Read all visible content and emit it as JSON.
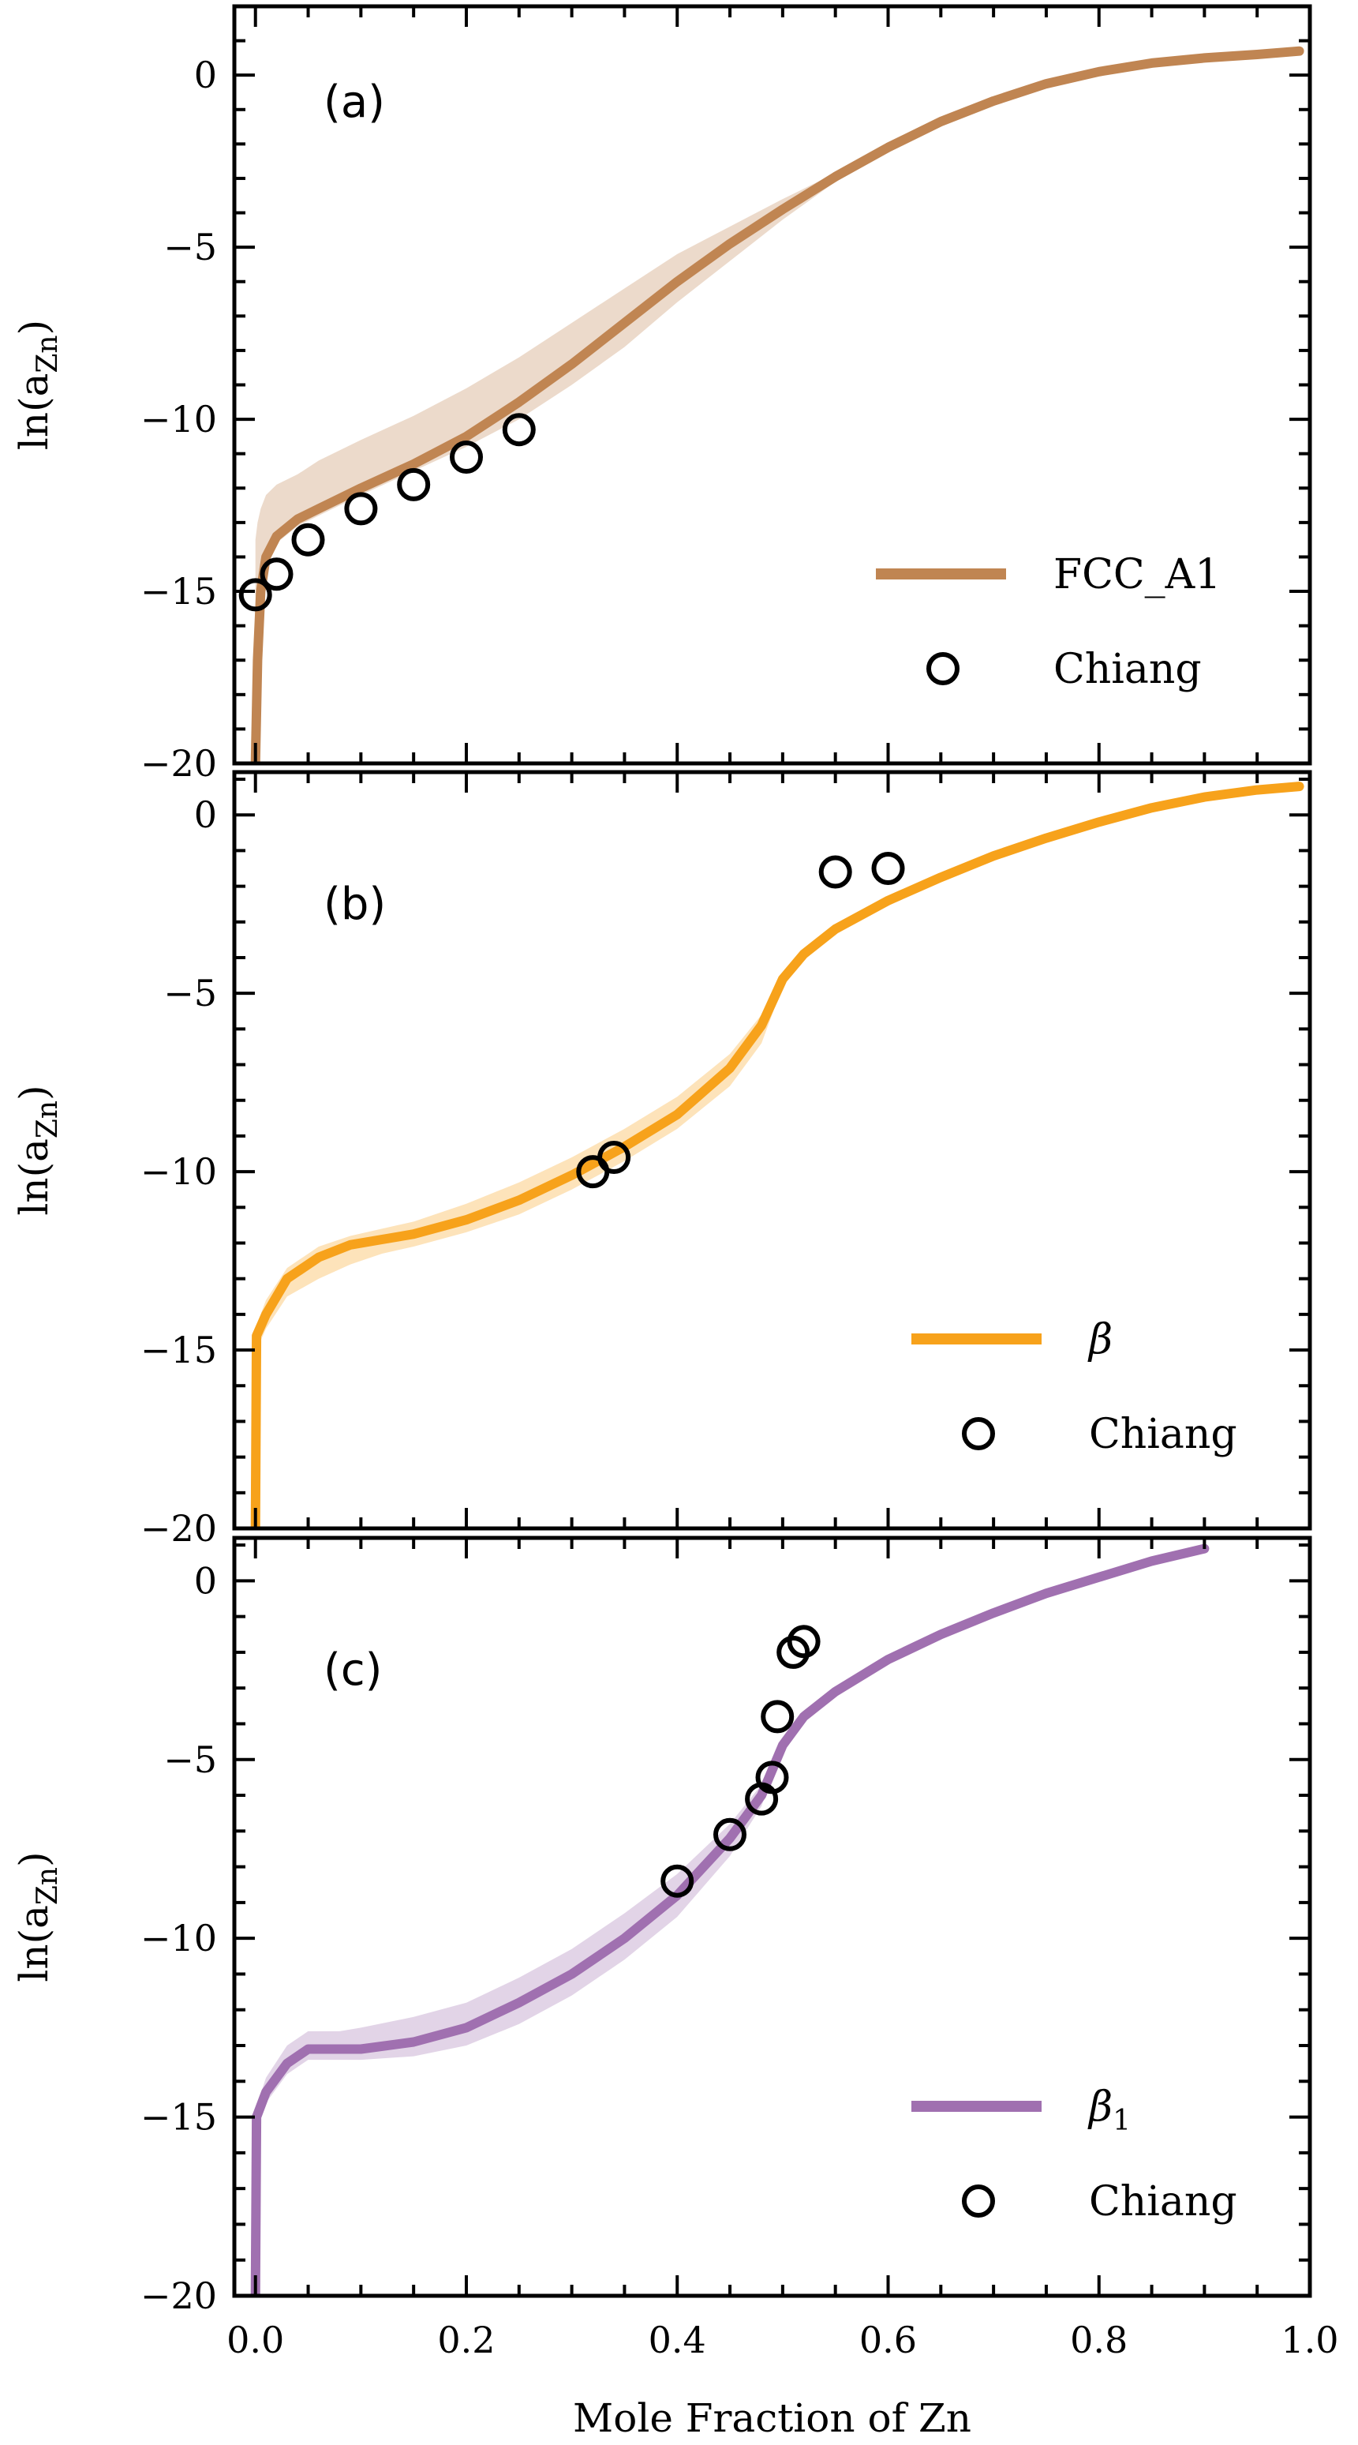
{
  "chart_data": {
    "type": "line",
    "xlabel": "Mole Fraction of Zn",
    "xlim": [
      -0.02,
      1.0
    ],
    "x_ticks": [
      "0.0",
      "0.2",
      "0.4",
      "0.6",
      "0.8",
      "1.0"
    ],
    "x_tick_values": [
      0.0,
      0.2,
      0.4,
      0.6,
      0.8,
      1.0
    ],
    "panels": [
      {
        "label": "(a)",
        "ylabel_main": "ln(a",
        "ylabel_sub": "Zn",
        "ylabel_close": ")",
        "ylim": [
          -20,
          2
        ],
        "y_ticks": [
          "0",
          "−5",
          "−10",
          "−15",
          "−20"
        ],
        "y_tick_values": [
          0,
          -5,
          -10,
          -15,
          -20
        ],
        "series": [
          {
            "name": "FCC_A1",
            "style": "line",
            "color": "#c08552",
            "x": [
              0.0,
              0.002,
              0.005,
              0.01,
              0.02,
              0.04,
              0.06,
              0.1,
              0.15,
              0.2,
              0.25,
              0.3,
              0.35,
              0.4,
              0.45,
              0.5,
              0.55,
              0.6,
              0.65,
              0.7,
              0.75,
              0.8,
              0.85,
              0.9,
              0.95,
              0.99
            ],
            "y": [
              -20,
              -17,
              -15,
              -14,
              -13.4,
              -12.9,
              -12.6,
              -12.0,
              -11.3,
              -10.5,
              -9.5,
              -8.4,
              -7.2,
              -6.0,
              -4.9,
              -3.9,
              -2.95,
              -2.1,
              -1.35,
              -0.75,
              -0.25,
              0.1,
              0.35,
              0.5,
              0.6,
              0.7
            ],
            "band_upper": [
              -13.5,
              -13.0,
              -12.6,
              -12.2,
              -11.9,
              -11.6,
              -11.2,
              -10.6,
              -9.9,
              -9.1,
              -8.2,
              -7.2,
              -6.2,
              -5.2,
              -4.4,
              -3.6,
              -2.85,
              -2.05,
              -1.3,
              -0.7,
              -0.2,
              0.12,
              0.37,
              0.52,
              0.62,
              0.72
            ],
            "band_lower": [
              -20,
              -17,
              -15,
              -14.1,
              -13.6,
              -13.1,
              -12.8,
              -12.2,
              -11.5,
              -10.8,
              -10.0,
              -9.0,
              -7.9,
              -6.6,
              -5.4,
              -4.2,
              -3.1,
              -2.2,
              -1.4,
              -0.8,
              -0.3,
              0.08,
              0.33,
              0.48,
              0.58,
              0.68
            ]
          },
          {
            "name": "Chiang",
            "style": "marker",
            "x": [
              0.0,
              0.02,
              0.05,
              0.1,
              0.15,
              0.2,
              0.25
            ],
            "y": [
              -15.1,
              -14.5,
              -13.5,
              -12.6,
              -11.9,
              -11.1,
              -10.3
            ]
          }
        ],
        "legend": [
          {
            "text": "FCC_A1",
            "kind": "line"
          },
          {
            "text": "Chiang",
            "kind": "marker"
          }
        ]
      },
      {
        "label": "(b)",
        "ylabel_main": "ln(a",
        "ylabel_sub": "Zn",
        "ylabel_close": ")",
        "ylim": [
          -20,
          1.2
        ],
        "y_ticks": [
          "0",
          "−5",
          "−10",
          "−15",
          "−20"
        ],
        "y_tick_values": [
          0,
          -5,
          -10,
          -15,
          -20
        ],
        "series": [
          {
            "name": "β",
            "style": "line",
            "color": "#f7a21b",
            "x": [
              0.0,
              0.001,
              0.01,
              0.03,
              0.06,
              0.09,
              0.12,
              0.15,
              0.2,
              0.25,
              0.3,
              0.35,
              0.4,
              0.45,
              0.48,
              0.5,
              0.52,
              0.55,
              0.6,
              0.65,
              0.7,
              0.75,
              0.8,
              0.85,
              0.9,
              0.95,
              0.99
            ],
            "y": [
              -20,
              -14.6,
              -14.0,
              -13.0,
              -12.4,
              -12.05,
              -11.9,
              -11.75,
              -11.35,
              -10.8,
              -10.1,
              -9.3,
              -8.4,
              -7.1,
              -5.9,
              -4.6,
              -3.9,
              -3.2,
              -2.4,
              -1.75,
              -1.15,
              -0.65,
              -0.2,
              0.2,
              0.5,
              0.7,
              0.8
            ],
            "band_upper": [
              -20,
              -14.3,
              -13.6,
              -12.7,
              -12.1,
              -11.8,
              -11.6,
              -11.4,
              -10.9,
              -10.3,
              -9.6,
              -8.8,
              -7.9,
              -6.7,
              -5.6,
              -4.5,
              -3.85,
              -3.15,
              -2.35,
              -1.7,
              -1.1,
              -0.6,
              -0.15,
              0.25,
              0.55,
              0.72,
              0.82
            ],
            "band_lower": [
              -20,
              -15.0,
              -14.4,
              -13.5,
              -13.0,
              -12.6,
              -12.3,
              -12.1,
              -11.7,
              -11.2,
              -10.5,
              -9.7,
              -8.8,
              -7.6,
              -6.4,
              -4.8,
              -4.0,
              -3.25,
              -2.45,
              -1.8,
              -1.2,
              -0.7,
              -0.25,
              0.15,
              0.45,
              0.68,
              0.78
            ]
          },
          {
            "name": "Chiang",
            "style": "marker",
            "x": [
              0.32,
              0.34,
              0.55,
              0.6
            ],
            "y": [
              -10.0,
              -9.6,
              -1.6,
              -1.5
            ]
          }
        ],
        "legend": [
          {
            "text": "β",
            "kind": "line"
          },
          {
            "text": "Chiang",
            "kind": "marker"
          }
        ]
      },
      {
        "label": "(c)",
        "ylabel_main": "ln(a",
        "ylabel_sub": "Zn",
        "ylabel_close": ")",
        "ylim": [
          -20,
          1.2
        ],
        "y_ticks": [
          "0",
          "−5",
          "−10",
          "−15",
          "−20"
        ],
        "y_tick_values": [
          0,
          -5,
          -10,
          -15,
          -20
        ],
        "series": [
          {
            "name": "β₁",
            "style": "line",
            "color": "#a070b0",
            "x": [
              0.0,
              0.001,
              0.01,
              0.03,
              0.05,
              0.08,
              0.1,
              0.15,
              0.2,
              0.25,
              0.3,
              0.35,
              0.4,
              0.45,
              0.48,
              0.5,
              0.52,
              0.55,
              0.6,
              0.65,
              0.7,
              0.75,
              0.8,
              0.85,
              0.9
            ],
            "y": [
              -20,
              -15.0,
              -14.3,
              -13.5,
              -13.1,
              -13.1,
              -13.1,
              -12.9,
              -12.5,
              -11.8,
              -11.0,
              -10.0,
              -8.8,
              -7.2,
              -6.0,
              -4.6,
              -3.8,
              -3.1,
              -2.2,
              -1.5,
              -0.9,
              -0.35,
              0.1,
              0.55,
              0.9
            ],
            "band_upper": [
              -20,
              -14.7,
              -13.9,
              -13.0,
              -12.6,
              -12.6,
              -12.5,
              -12.2,
              -11.8,
              -11.1,
              -10.3,
              -9.3,
              -8.2,
              -6.8,
              -5.7,
              -4.5,
              -3.75,
              -3.05,
              -2.15,
              -1.45,
              -0.85,
              -0.3,
              0.15,
              0.6,
              0.95
            ],
            "band_lower": [
              -20,
              -15.3,
              -14.6,
              -13.8,
              -13.4,
              -13.4,
              -13.4,
              -13.3,
              -13.0,
              -12.4,
              -11.6,
              -10.6,
              -9.4,
              -7.7,
              -6.3,
              -4.7,
              -3.85,
              -3.15,
              -2.25,
              -1.55,
              -0.95,
              -0.4,
              0.05,
              0.5,
              0.85
            ]
          },
          {
            "name": "Chiang",
            "style": "marker",
            "x": [
              0.4,
              0.45,
              0.48,
              0.49,
              0.495,
              0.51,
              0.52
            ],
            "y": [
              -8.4,
              -7.1,
              -6.1,
              -5.5,
              -3.8,
              -2.0,
              -1.7
            ]
          }
        ],
        "legend": [
          {
            "text": "β",
            "sub": "1",
            "kind": "line"
          },
          {
            "text": "Chiang",
            "kind": "marker"
          }
        ]
      }
    ]
  }
}
